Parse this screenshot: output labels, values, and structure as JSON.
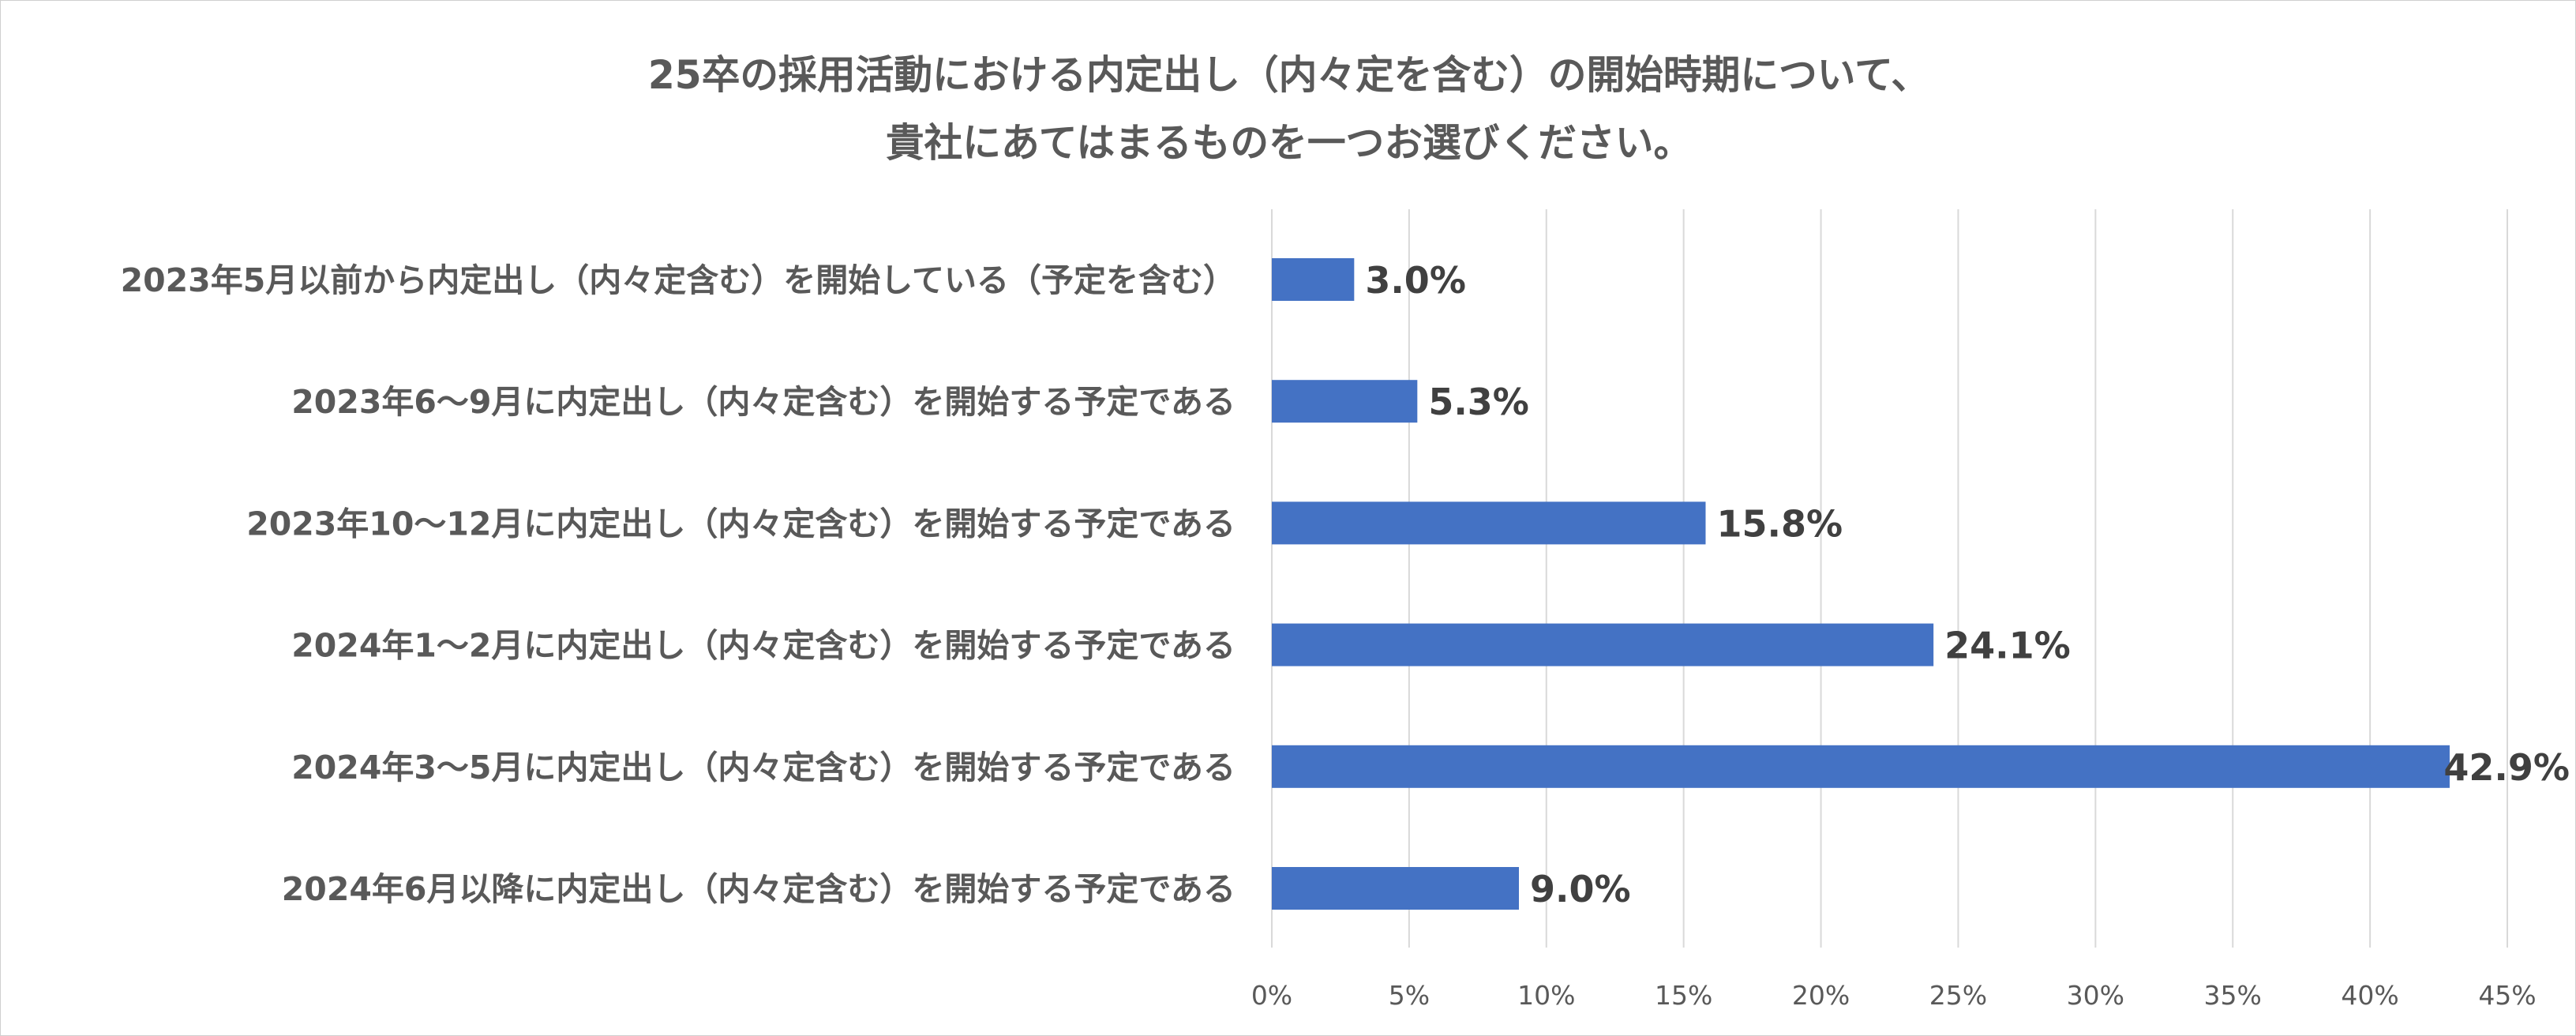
{
  "chart_data": {
    "type": "bar",
    "orientation": "horizontal",
    "title": [
      "25卒の採用活動における内定出し（内々定を含む）の開始時期について、",
      "貴社にあてはまるものを一つお選びください。"
    ],
    "categories": [
      "2023年5月以前から内定出し（内々定含む）を開始している（予定を含む）",
      "2023年6～9月に内定出し（内々定含む）を開始する予定である",
      "2023年10～12月に内定出し（内々定含む）を開始する予定である",
      "2024年1～2月に内定出し（内々定含む）を開始する予定である",
      "2024年3～5月に内定出し（内々定含む）を開始する予定である",
      "2024年6月以降に内定出し（内々定含む）を開始する予定である"
    ],
    "values": [
      3.0,
      5.3,
      15.8,
      24.1,
      42.9,
      9.0
    ],
    "data_labels": [
      "3.0%",
      "5.3%",
      "15.8%",
      "24.1%",
      "42.9%",
      "9.0%"
    ],
    "xlim": [
      0,
      45
    ],
    "xticks": [
      0,
      5,
      10,
      15,
      20,
      25,
      30,
      35,
      40,
      45
    ],
    "xtick_labels": [
      "0%",
      "5%",
      "10%",
      "15%",
      "20%",
      "25%",
      "30%",
      "35%",
      "40%",
      "45%"
    ],
    "grid": "vertical",
    "legend": "none",
    "colors": {
      "bar": "#4472c4",
      "grid": "#d9d9d9",
      "label_text": "#595959",
      "data_label_text": "#404040"
    }
  }
}
